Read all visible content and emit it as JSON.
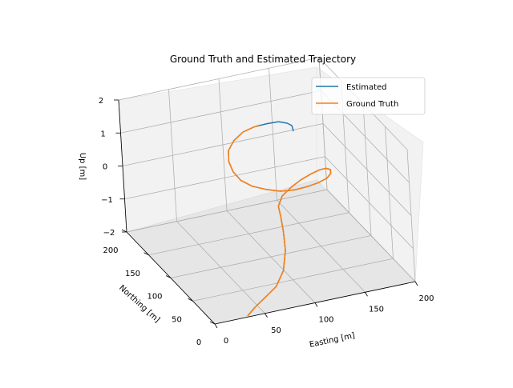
{
  "chart_data": {
    "type": "line",
    "title": "Ground Truth and Estimated Trajectory",
    "xlabel": "Easting [m]",
    "ylabel": "Northing [m]",
    "zlabel": "Up [m]",
    "xlim": [
      0,
      200
    ],
    "ylim": [
      0,
      200
    ],
    "zlim": [
      -2,
      2
    ],
    "x_ticks": [
      "0",
      "50",
      "100",
      "150",
      "200"
    ],
    "y_ticks": [
      "0",
      "50",
      "100",
      "150",
      "200"
    ],
    "z_ticks": [
      "−2",
      "−1",
      "0",
      "1",
      "2"
    ],
    "grid": true,
    "legend_position": "top-right",
    "series": [
      {
        "name": "Estimated",
        "color": "#1f77b4",
        "x": [
          36,
          48,
          62,
          78,
          92,
          100,
          104,
          108,
          112,
          122,
          136,
          148,
          160,
          168,
          172,
          172,
          168,
          160,
          148,
          134,
          120,
          106,
          94,
          84,
          78,
          76,
          78,
          84,
          94,
          106,
          118,
          130,
          140,
          146,
          148,
          146
        ],
        "y": [
          8,
          18,
          28,
          38,
          52,
          64,
          76,
          90,
          104,
          118,
          128,
          134,
          138,
          136,
          130,
          120,
          110,
          100,
          92,
          86,
          82,
          82,
          88,
          96,
          108,
          120,
          134,
          148,
          158,
          164,
          166,
          164,
          160,
          154,
          148,
          140
        ],
        "z": [
          -2.1,
          -2.05,
          -2.0,
          -1.9,
          -1.7,
          -1.3,
          -0.9,
          -0.7,
          -0.6,
          -0.55,
          -0.5,
          -0.45,
          -0.4,
          -0.3,
          -0.2,
          -0.1,
          -0.05,
          0.0,
          0.05,
          0.1,
          0.15,
          0.2,
          0.25,
          0.3,
          0.35,
          0.45,
          0.55,
          0.65,
          0.75,
          0.85,
          0.9,
          0.95,
          1.0,
          1.0,
          1.0,
          0.95
        ]
      },
      {
        "name": "Ground Truth",
        "color": "#ff7f0e",
        "x": [
          36,
          48,
          62,
          78,
          92,
          100,
          104,
          108,
          112,
          122,
          136,
          148,
          160,
          168,
          172,
          172,
          168,
          160,
          148,
          134,
          120,
          106,
          94,
          84,
          78,
          76,
          78,
          84,
          94,
          106,
          118,
          124
        ],
        "y": [
          8,
          18,
          28,
          38,
          52,
          64,
          76,
          90,
          104,
          118,
          128,
          134,
          138,
          136,
          130,
          120,
          110,
          100,
          92,
          86,
          82,
          82,
          88,
          96,
          108,
          120,
          134,
          148,
          158,
          164,
          166,
          166
        ],
        "z": [
          -2.1,
          -2.05,
          -2.0,
          -1.9,
          -1.7,
          -1.3,
          -0.9,
          -0.7,
          -0.6,
          -0.55,
          -0.5,
          -0.45,
          -0.4,
          -0.3,
          -0.2,
          -0.1,
          -0.05,
          0.0,
          0.05,
          0.1,
          0.15,
          0.2,
          0.25,
          0.3,
          0.35,
          0.45,
          0.55,
          0.65,
          0.75,
          0.85,
          0.9,
          0.92
        ]
      }
    ]
  }
}
